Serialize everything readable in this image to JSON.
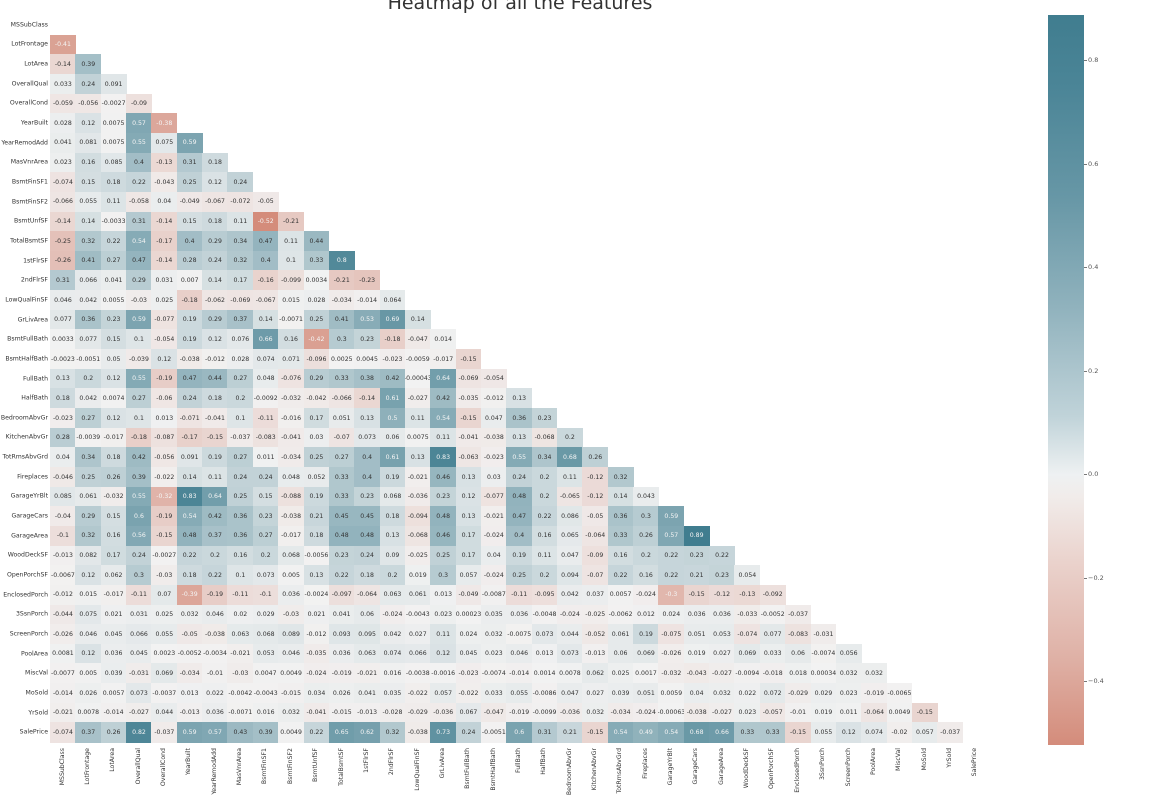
{
  "title": "Heatmap of all the Features",
  "chart_data": {
    "type": "heatmap",
    "title": "Heatmap of all the Features",
    "mask": "upper-triangle",
    "xlabel": "",
    "ylabel": "",
    "features": [
      "MSSubClass",
      "LotFrontage",
      "LotArea",
      "OverallQual",
      "OverallCond",
      "YearBuilt",
      "YearRemodAdd",
      "MasVnrArea",
      "BsmtFinSF1",
      "BsmtFinSF2",
      "BsmtUnfSF",
      "TotalBsmtSF",
      "1stFlrSF",
      "2ndFlrSF",
      "LowQualFinSF",
      "GrLivArea",
      "BsmtFullBath",
      "BsmtHalfBath",
      "FullBath",
      "HalfBath",
      "BedroomAbvGr",
      "KitchenAbvGr",
      "TotRmsAbvGrd",
      "Fireplaces",
      "GarageYrBlt",
      "GarageCars",
      "GarageArea",
      "WoodDeckSF",
      "OpenPorchSF",
      "EnclosedPorch",
      "3SsnPorch",
      "ScreenPorch",
      "PoolArea",
      "MiscVal",
      "MoSold",
      "YrSold",
      "SalePrice"
    ],
    "rows": [
      [],
      [
        "-0.41"
      ],
      [
        "-0.14",
        "0.39"
      ],
      [
        "0.033",
        "0.24",
        "0.091"
      ],
      [
        "-0.059",
        "-0.056",
        "-0.0027",
        "-0.09"
      ],
      [
        "0.028",
        "0.12",
        "0.0075",
        "0.57",
        "-0.38"
      ],
      [
        "0.041",
        "0.081",
        "0.0075",
        "0.55",
        "0.075",
        "0.59"
      ],
      [
        "0.023",
        "0.16",
        "0.085",
        "0.4",
        "-0.13",
        "0.31",
        "0.18"
      ],
      [
        "-0.074",
        "0.15",
        "0.18",
        "0.22",
        "-0.043",
        "0.25",
        "0.12",
        "0.24"
      ],
      [
        "-0.066",
        "0.055",
        "0.11",
        "-0.058",
        "0.04",
        "-0.049",
        "-0.067",
        "-0.072",
        "-0.05"
      ],
      [
        "-0.14",
        "0.14",
        "-0.0033",
        "0.31",
        "-0.14",
        "0.15",
        "0.18",
        "0.11",
        "-0.52",
        "-0.21"
      ],
      [
        "-0.25",
        "0.32",
        "0.22",
        "0.54",
        "-0.17",
        "0.4",
        "0.29",
        "0.34",
        "0.47",
        "0.11",
        "0.44"
      ],
      [
        "-0.26",
        "0.41",
        "0.27",
        "0.47",
        "-0.14",
        "0.28",
        "0.24",
        "0.32",
        "0.4",
        "0.1",
        "0.33",
        "0.8"
      ],
      [
        "0.31",
        "0.066",
        "0.041",
        "0.29",
        "0.031",
        "0.007",
        "0.14",
        "0.17",
        "-0.16",
        "-0.099",
        "0.0034",
        "-0.21",
        "-0.23"
      ],
      [
        "0.046",
        "0.042",
        "0.0055",
        "-0.03",
        "0.025",
        "-0.18",
        "-0.062",
        "-0.069",
        "-0.067",
        "0.015",
        "0.028",
        "-0.034",
        "-0.014",
        "0.064"
      ],
      [
        "0.077",
        "0.36",
        "0.23",
        "0.59",
        "-0.077",
        "0.19",
        "0.29",
        "0.37",
        "0.14",
        "-0.0071",
        "0.25",
        "0.41",
        "0.53",
        "0.69",
        "0.14"
      ],
      [
        "0.0033",
        "0.077",
        "0.15",
        "0.1",
        "-0.054",
        "0.19",
        "0.12",
        "0.076",
        "0.66",
        "0.16",
        "-0.42",
        "0.3",
        "0.23",
        "-0.18",
        "-0.047",
        "0.014"
      ],
      [
        "-0.0023",
        "-0.0051",
        "0.05",
        "-0.039",
        "0.12",
        "-0.038",
        "-0.012",
        "0.028",
        "0.074",
        "0.071",
        "-0.096",
        "0.0025",
        "0.0045",
        "-0.023",
        "-0.0059",
        "-0.017",
        "-0.15"
      ],
      [
        "0.13",
        "0.2",
        "0.12",
        "0.55",
        "-0.19",
        "0.47",
        "0.44",
        "0.27",
        "0.048",
        "-0.076",
        "0.29",
        "0.33",
        "0.38",
        "0.42",
        "-0.00043",
        "0.64",
        "-0.069",
        "-0.054"
      ],
      [
        "0.18",
        "0.042",
        "0.0074",
        "0.27",
        "-0.06",
        "0.24",
        "0.18",
        "0.2",
        "-0.0092",
        "-0.032",
        "-0.042",
        "-0.066",
        "-0.14",
        "0.61",
        "-0.027",
        "0.42",
        "-0.035",
        "-0.012",
        "0.13"
      ],
      [
        "-0.023",
        "0.27",
        "0.12",
        "0.1",
        "0.013",
        "-0.071",
        "-0.041",
        "0.1",
        "-0.11",
        "-0.016",
        "0.17",
        "0.051",
        "0.13",
        "0.5",
        "0.11",
        "0.54",
        "-0.15",
        "0.047",
        "0.36",
        "0.23"
      ],
      [
        "0.28",
        "-0.0039",
        "-0.017",
        "-0.18",
        "-0.087",
        "-0.17",
        "-0.15",
        "-0.037",
        "-0.083",
        "-0.041",
        "0.03",
        "-0.07",
        "0.073",
        "0.06",
        "0.0075",
        "0.11",
        "-0.041",
        "-0.038",
        "0.13",
        "-0.068",
        "0.2"
      ],
      [
        "0.04",
        "0.34",
        "0.18",
        "0.42",
        "-0.056",
        "0.091",
        "0.19",
        "0.27",
        "0.011",
        "-0.034",
        "0.25",
        "0.27",
        "0.4",
        "0.61",
        "0.13",
        "0.83",
        "-0.063",
        "-0.023",
        "0.55",
        "0.34",
        "0.68",
        "0.26"
      ],
      [
        "-0.046",
        "0.25",
        "0.26",
        "0.39",
        "-0.022",
        "0.14",
        "0.11",
        "0.24",
        "0.24",
        "0.048",
        "0.052",
        "0.33",
        "0.4",
        "0.19",
        "-0.021",
        "0.46",
        "0.13",
        "0.03",
        "0.24",
        "0.2",
        "0.11",
        "-0.12",
        "0.32"
      ],
      [
        "0.085",
        "0.061",
        "-0.032",
        "0.55",
        "-0.32",
        "0.83",
        "0.64",
        "0.25",
        "0.15",
        "-0.088",
        "0.19",
        "0.33",
        "0.23",
        "0.068",
        "-0.036",
        "0.23",
        "0.12",
        "-0.077",
        "0.48",
        "0.2",
        "-0.065",
        "-0.12",
        "0.14",
        "0.043"
      ],
      [
        "-0.04",
        "0.29",
        "0.15",
        "0.6",
        "-0.19",
        "0.54",
        "0.42",
        "0.36",
        "0.23",
        "-0.038",
        "0.21",
        "0.45",
        "0.45",
        "0.18",
        "-0.094",
        "0.48",
        "0.13",
        "-0.021",
        "0.47",
        "0.22",
        "0.086",
        "-0.05",
        "0.36",
        "0.3",
        "0.59"
      ],
      [
        "-0.1",
        "0.32",
        "0.16",
        "0.56",
        "-0.15",
        "0.48",
        "0.37",
        "0.36",
        "0.27",
        "-0.017",
        "0.18",
        "0.48",
        "0.48",
        "0.13",
        "-0.068",
        "0.46",
        "0.17",
        "-0.024",
        "0.4",
        "0.16",
        "0.065",
        "-0.064",
        "0.33",
        "0.26",
        "0.57",
        "0.89"
      ],
      [
        "-0.013",
        "0.082",
        "0.17",
        "0.24",
        "-0.0027",
        "0.22",
        "0.2",
        "0.16",
        "0.2",
        "0.068",
        "-0.0056",
        "0.23",
        "0.24",
        "0.09",
        "-0.025",
        "0.25",
        "0.17",
        "0.04",
        "0.19",
        "0.11",
        "0.047",
        "-0.09",
        "0.16",
        "0.2",
        "0.22",
        "0.23",
        "0.22"
      ],
      [
        "-0.0067",
        "0.12",
        "0.062",
        "0.3",
        "-0.03",
        "0.18",
        "0.22",
        "0.1",
        "0.073",
        "0.005",
        "0.13",
        "0.22",
        "0.18",
        "0.2",
        "0.019",
        "0.3",
        "0.057",
        "-0.024",
        "0.25",
        "0.2",
        "0.094",
        "-0.07",
        "0.22",
        "0.16",
        "0.22",
        "0.21",
        "0.23",
        "0.054"
      ],
      [
        "-0.012",
        "0.015",
        "-0.017",
        "-0.11",
        "0.07",
        "-0.39",
        "-0.19",
        "-0.11",
        "-0.1",
        "0.036",
        "-0.0024",
        "-0.097",
        "-0.064",
        "0.063",
        "0.061",
        "0.013",
        "-0.049",
        "-0.0087",
        "-0.11",
        "-0.095",
        "0.042",
        "0.037",
        "0.0057",
        "-0.024",
        "-0.3",
        "-0.15",
        "-0.12",
        "-0.13",
        "-0.092"
      ],
      [
        "-0.044",
        "0.075",
        "0.021",
        "0.031",
        "0.025",
        "0.032",
        "0.046",
        "0.02",
        "0.029",
        "-0.03",
        "0.021",
        "0.041",
        "0.06",
        "-0.024",
        "-0.0043",
        "0.023",
        "0.00023",
        "0.035",
        "0.036",
        "-0.0048",
        "-0.024",
        "-0.025",
        "-0.0062",
        "0.012",
        "0.024",
        "0.036",
        "0.036",
        "-0.033",
        "-0.0052",
        "-0.037"
      ],
      [
        "-0.026",
        "0.046",
        "0.045",
        "0.066",
        "0.055",
        "-0.05",
        "-0.038",
        "0.063",
        "0.068",
        "0.089",
        "-0.012",
        "0.093",
        "0.095",
        "0.042",
        "0.027",
        "0.11",
        "0.024",
        "0.032",
        "-0.0075",
        "0.073",
        "0.044",
        "-0.052",
        "0.061",
        "0.19",
        "-0.075",
        "0.051",
        "0.053",
        "-0.074",
        "0.077",
        "-0.083",
        "-0.031"
      ],
      [
        "0.0081",
        "0.12",
        "0.036",
        "0.045",
        "0.0023",
        "-0.0052",
        "-0.0034",
        "-0.021",
        "0.053",
        "0.046",
        "-0.035",
        "0.036",
        "0.063",
        "0.074",
        "0.066",
        "0.12",
        "0.045",
        "0.023",
        "0.046",
        "0.013",
        "0.073",
        "-0.013",
        "0.06",
        "0.069",
        "-0.026",
        "0.019",
        "0.027",
        "0.069",
        "0.033",
        "0.06",
        "-0.0074",
        "0.056"
      ],
      [
        "-0.0077",
        "0.005",
        "0.039",
        "-0.031",
        "0.069",
        "-0.034",
        "-0.01",
        "-0.03",
        "0.0047",
        "0.0049",
        "-0.024",
        "-0.019",
        "-0.021",
        "0.016",
        "-0.0038",
        "-0.0016",
        "-0.023",
        "-0.0074",
        "-0.014",
        "0.0014",
        "0.0078",
        "0.062",
        "0.025",
        "0.0017",
        "-0.032",
        "-0.043",
        "-0.027",
        "-0.0094",
        "-0.018",
        "0.018",
        "0.00034",
        "0.032",
        "0.032"
      ],
      [
        "-0.014",
        "0.026",
        "0.0057",
        "0.073",
        "-0.0037",
        "0.013",
        "0.022",
        "-0.0042",
        "-0.0043",
        "-0.015",
        "0.034",
        "0.026",
        "0.041",
        "0.035",
        "-0.022",
        "0.057",
        "-0.022",
        "0.033",
        "0.055",
        "-0.0086",
        "0.047",
        "0.027",
        "0.039",
        "0.051",
        "0.0059",
        "0.04",
        "0.032",
        "0.022",
        "0.072",
        "-0.029",
        "0.029",
        "0.023",
        "-0.019",
        "-0.0065"
      ],
      [
        "-0.021",
        "0.0078",
        "-0.014",
        "-0.027",
        "0.044",
        "-0.013",
        "0.036",
        "-0.0071",
        "0.016",
        "0.032",
        "-0.041",
        "-0.015",
        "-0.013",
        "-0.028",
        "-0.029",
        "-0.036",
        "0.067",
        "-0.047",
        "-0.019",
        "-0.0099",
        "-0.036",
        "0.032",
        "-0.034",
        "-0.024",
        "-0.00063",
        "-0.038",
        "-0.027",
        "0.023",
        "-0.057",
        "-0.01",
        "0.019",
        "0.011",
        "-0.064",
        "0.0049",
        "-0.15"
      ],
      [
        "-0.074",
        "0.37",
        "0.26",
        "0.82",
        "-0.037",
        "0.59",
        "0.57",
        "0.43",
        "0.39",
        "0.0049",
        "0.22",
        "0.65",
        "0.62",
        "0.32",
        "-0.038",
        "0.73",
        "0.24",
        "-0.0051",
        "0.6",
        "0.31",
        "0.21",
        "-0.15",
        "0.54",
        "0.49",
        "0.54",
        "0.68",
        "0.66",
        "0.33",
        "0.33",
        "-0.15",
        "0.055",
        "0.12",
        "0.074",
        "-0.02",
        "0.057",
        "-0.037"
      ]
    ],
    "colorbar": {
      "ticks": [
        "0.8",
        "0.6",
        "0.4",
        "0.2",
        "0.0",
        "−0.2",
        "−0.4"
      ],
      "range": [
        -0.52,
        0.89
      ],
      "cmap": "diverging teal-salmon",
      "positive_color": "#407d8f",
      "zero_color": "#f2f2f2",
      "negative_color": "#d48c7b"
    },
    "grid": false,
    "legend_position": "right"
  }
}
